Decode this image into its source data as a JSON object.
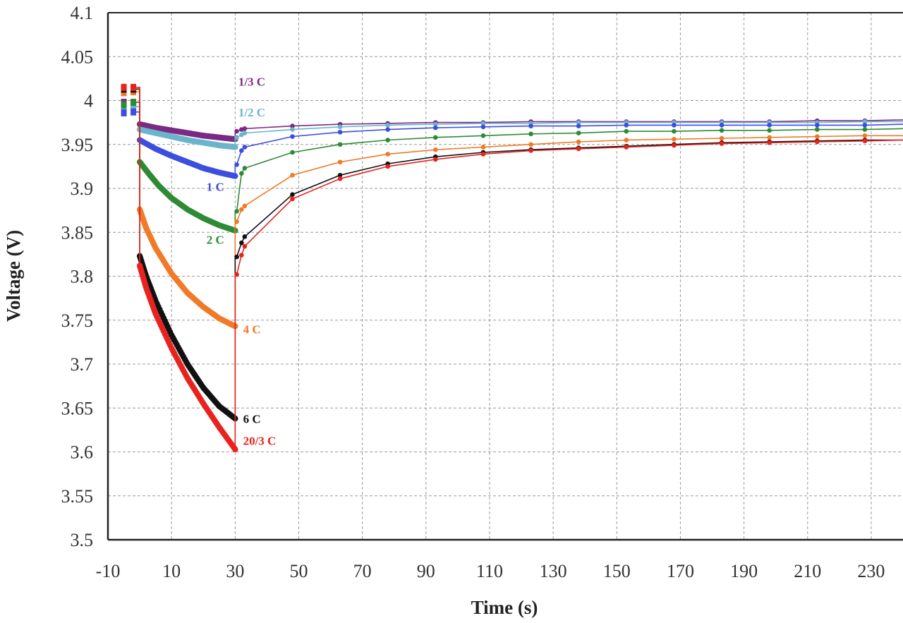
{
  "chart_data": {
    "type": "line",
    "xlabel": "Time (s)",
    "ylabel": "Voltage (V)",
    "xlim": [
      -10,
      240
    ],
    "ylim": [
      3.5,
      4.1
    ],
    "xticks": [
      -10,
      10,
      30,
      50,
      70,
      90,
      110,
      130,
      150,
      170,
      190,
      210,
      230
    ],
    "yticks": [
      3.5,
      3.55,
      3.6,
      3.65,
      3.7,
      3.75,
      3.8,
      3.85,
      3.9,
      3.95,
      4,
      4.05,
      4.1
    ],
    "ytick_labels": [
      "3.5",
      "3.55",
      "3.6",
      "3.65",
      "3.7",
      "3.75",
      "3.8",
      "3.85",
      "3.9",
      "3.95",
      "4",
      "4.05",
      "4.1"
    ],
    "grid": true,
    "series": [
      {
        "name": "1/3 C",
        "color": "#7b2a83",
        "label_pos": [
          31,
          4.017
        ],
        "pre": [
          [
            -5,
            3.998
          ],
          [
            -2,
            3.998
          ]
        ],
        "pre_end": 3.998,
        "disch": [
          [
            0,
            3.973
          ],
          [
            5,
            3.969
          ],
          [
            10,
            3.966
          ],
          [
            15,
            3.963
          ],
          [
            20,
            3.96
          ],
          [
            25,
            3.958
          ],
          [
            30,
            3.956
          ]
        ],
        "relax": [
          [
            30.5,
            3.965
          ],
          [
            32,
            3.967
          ],
          [
            33,
            3.968
          ],
          [
            48,
            3.971
          ],
          [
            63,
            3.973
          ],
          [
            78,
            3.974
          ],
          [
            93,
            3.975
          ],
          [
            108,
            3.975
          ],
          [
            123,
            3.976
          ],
          [
            138,
            3.976
          ],
          [
            153,
            3.976
          ],
          [
            168,
            3.976
          ],
          [
            183,
            3.976
          ],
          [
            198,
            3.976
          ],
          [
            213,
            3.977
          ],
          [
            228,
            3.977
          ],
          [
            240,
            3.978
          ]
        ]
      },
      {
        "name": "1/2 C",
        "color": "#6ab4cc",
        "label_pos": [
          31,
          3.982
        ],
        "pre": [
          [
            -5,
            3.992
          ],
          [
            -2,
            3.993
          ]
        ],
        "pre_end": 3.993,
        "disch": [
          [
            0,
            3.967
          ],
          [
            5,
            3.963
          ],
          [
            10,
            3.959
          ],
          [
            15,
            3.955
          ],
          [
            20,
            3.952
          ],
          [
            25,
            3.949
          ],
          [
            30,
            3.947
          ]
        ],
        "relax": [
          [
            30.5,
            3.958
          ],
          [
            32,
            3.961
          ],
          [
            33,
            3.963
          ],
          [
            48,
            3.967
          ],
          [
            63,
            3.97
          ],
          [
            78,
            3.972
          ],
          [
            93,
            3.973
          ],
          [
            108,
            3.974
          ],
          [
            123,
            3.974
          ],
          [
            138,
            3.975
          ],
          [
            153,
            3.975
          ],
          [
            168,
            3.975
          ],
          [
            183,
            3.975
          ],
          [
            198,
            3.975
          ],
          [
            213,
            3.975
          ],
          [
            228,
            3.976
          ],
          [
            240,
            3.976
          ]
        ]
      },
      {
        "name": "1 C",
        "color": "#3c4ee0",
        "label_pos": [
          21,
          3.897
        ],
        "pre": [
          [
            -5,
            3.986
          ],
          [
            -2,
            3.987
          ]
        ],
        "pre_end": 3.987,
        "disch": [
          [
            0,
            3.955
          ],
          [
            5,
            3.945
          ],
          [
            10,
            3.937
          ],
          [
            15,
            3.93
          ],
          [
            20,
            3.923
          ],
          [
            25,
            3.918
          ],
          [
            30,
            3.914
          ]
        ],
        "relax": [
          [
            30.5,
            3.927
          ],
          [
            32,
            3.943
          ],
          [
            33,
            3.947
          ],
          [
            48,
            3.959
          ],
          [
            63,
            3.964
          ],
          [
            78,
            3.967
          ],
          [
            93,
            3.969
          ],
          [
            108,
            3.97
          ],
          [
            123,
            3.971
          ],
          [
            138,
            3.971
          ],
          [
            153,
            3.972
          ],
          [
            168,
            3.972
          ],
          [
            183,
            3.972
          ],
          [
            198,
            3.972
          ],
          [
            213,
            3.972
          ],
          [
            228,
            3.972
          ],
          [
            240,
            3.973
          ]
        ]
      },
      {
        "name": "2 C",
        "color": "#2e8b35",
        "label_pos": [
          21,
          3.837
        ],
        "pre": [
          [
            -5,
            3.995
          ],
          [
            -2,
            3.998
          ]
        ],
        "pre_end": 3.998,
        "disch": [
          [
            0,
            3.93
          ],
          [
            3,
            3.916
          ],
          [
            6,
            3.903
          ],
          [
            10,
            3.889
          ],
          [
            15,
            3.876
          ],
          [
            20,
            3.866
          ],
          [
            25,
            3.858
          ],
          [
            30,
            3.852
          ]
        ],
        "relax": [
          [
            30.5,
            3.874
          ],
          [
            32,
            3.917
          ],
          [
            33,
            3.923
          ],
          [
            48,
            3.941
          ],
          [
            63,
            3.95
          ],
          [
            78,
            3.955
          ],
          [
            93,
            3.958
          ],
          [
            108,
            3.96
          ],
          [
            123,
            3.962
          ],
          [
            138,
            3.963
          ],
          [
            153,
            3.965
          ],
          [
            168,
            3.965
          ],
          [
            183,
            3.966
          ],
          [
            198,
            3.966
          ],
          [
            213,
            3.967
          ],
          [
            228,
            3.967
          ],
          [
            240,
            3.968
          ]
        ]
      },
      {
        "name": "4 C",
        "color": "#f07a28",
        "label_pos": [
          32.5,
          3.735
        ],
        "pre": [
          [
            -5,
            4.009
          ],
          [
            -2,
            4.01
          ]
        ],
        "pre_end": 4.01,
        "disch": [
          [
            0,
            3.876
          ],
          [
            2,
            3.855
          ],
          [
            5,
            3.832
          ],
          [
            10,
            3.803
          ],
          [
            15,
            3.781
          ],
          [
            20,
            3.765
          ],
          [
            25,
            3.752
          ],
          [
            30,
            3.743
          ]
        ],
        "relax": [
          [
            30.5,
            3.862
          ],
          [
            32,
            3.876
          ],
          [
            33,
            3.88
          ],
          [
            48,
            3.915
          ],
          [
            63,
            3.93
          ],
          [
            78,
            3.939
          ],
          [
            93,
            3.944
          ],
          [
            108,
            3.947
          ],
          [
            123,
            3.95
          ],
          [
            138,
            3.953
          ],
          [
            153,
            3.955
          ],
          [
            168,
            3.956
          ],
          [
            183,
            3.957
          ],
          [
            198,
            3.958
          ],
          [
            213,
            3.959
          ],
          [
            228,
            3.96
          ],
          [
            240,
            3.96
          ]
        ]
      },
      {
        "name": "6 C",
        "color": "#111111",
        "label_pos": [
          32.5,
          3.633
        ],
        "pre": [
          [
            -5,
            4.013
          ],
          [
            -2,
            4.013
          ]
        ],
        "pre_end": 4.013,
        "disch": [
          [
            0,
            3.823
          ],
          [
            2,
            3.8
          ],
          [
            5,
            3.772
          ],
          [
            10,
            3.733
          ],
          [
            15,
            3.7
          ],
          [
            20,
            3.673
          ],
          [
            25,
            3.652
          ],
          [
            30,
            3.638
          ]
        ],
        "relax": [
          [
            30.5,
            3.822
          ],
          [
            32,
            3.838
          ],
          [
            33,
            3.845
          ],
          [
            48,
            3.893
          ],
          [
            63,
            3.915
          ],
          [
            78,
            3.928
          ],
          [
            93,
            3.936
          ],
          [
            108,
            3.941
          ],
          [
            123,
            3.944
          ],
          [
            138,
            3.946
          ],
          [
            153,
            3.948
          ],
          [
            168,
            3.95
          ],
          [
            183,
            3.952
          ],
          [
            198,
            3.953
          ],
          [
            213,
            3.954
          ],
          [
            228,
            3.955
          ],
          [
            240,
            3.955
          ]
        ]
      },
      {
        "name": "20/3 C",
        "color": "#e8231f",
        "label_pos": [
          32.5,
          3.608
        ],
        "pre": [
          [
            -5,
            4.015
          ],
          [
            -2,
            4.015
          ]
        ],
        "pre_end": 4.015,
        "disch": [
          [
            0,
            3.812
          ],
          [
            2,
            3.787
          ],
          [
            5,
            3.757
          ],
          [
            10,
            3.718
          ],
          [
            15,
            3.684
          ],
          [
            20,
            3.655
          ],
          [
            25,
            3.628
          ],
          [
            30,
            3.603
          ]
        ],
        "relax": [
          [
            30.5,
            3.802
          ],
          [
            32,
            3.824
          ],
          [
            33,
            3.834
          ],
          [
            48,
            3.888
          ],
          [
            63,
            3.911
          ],
          [
            78,
            3.925
          ],
          [
            93,
            3.933
          ],
          [
            108,
            3.939
          ],
          [
            123,
            3.943
          ],
          [
            138,
            3.945
          ],
          [
            153,
            3.947
          ],
          [
            168,
            3.949
          ],
          [
            183,
            3.951
          ],
          [
            198,
            3.952
          ],
          [
            213,
            3.953
          ],
          [
            228,
            3.954
          ],
          [
            240,
            3.955
          ]
        ]
      }
    ]
  }
}
